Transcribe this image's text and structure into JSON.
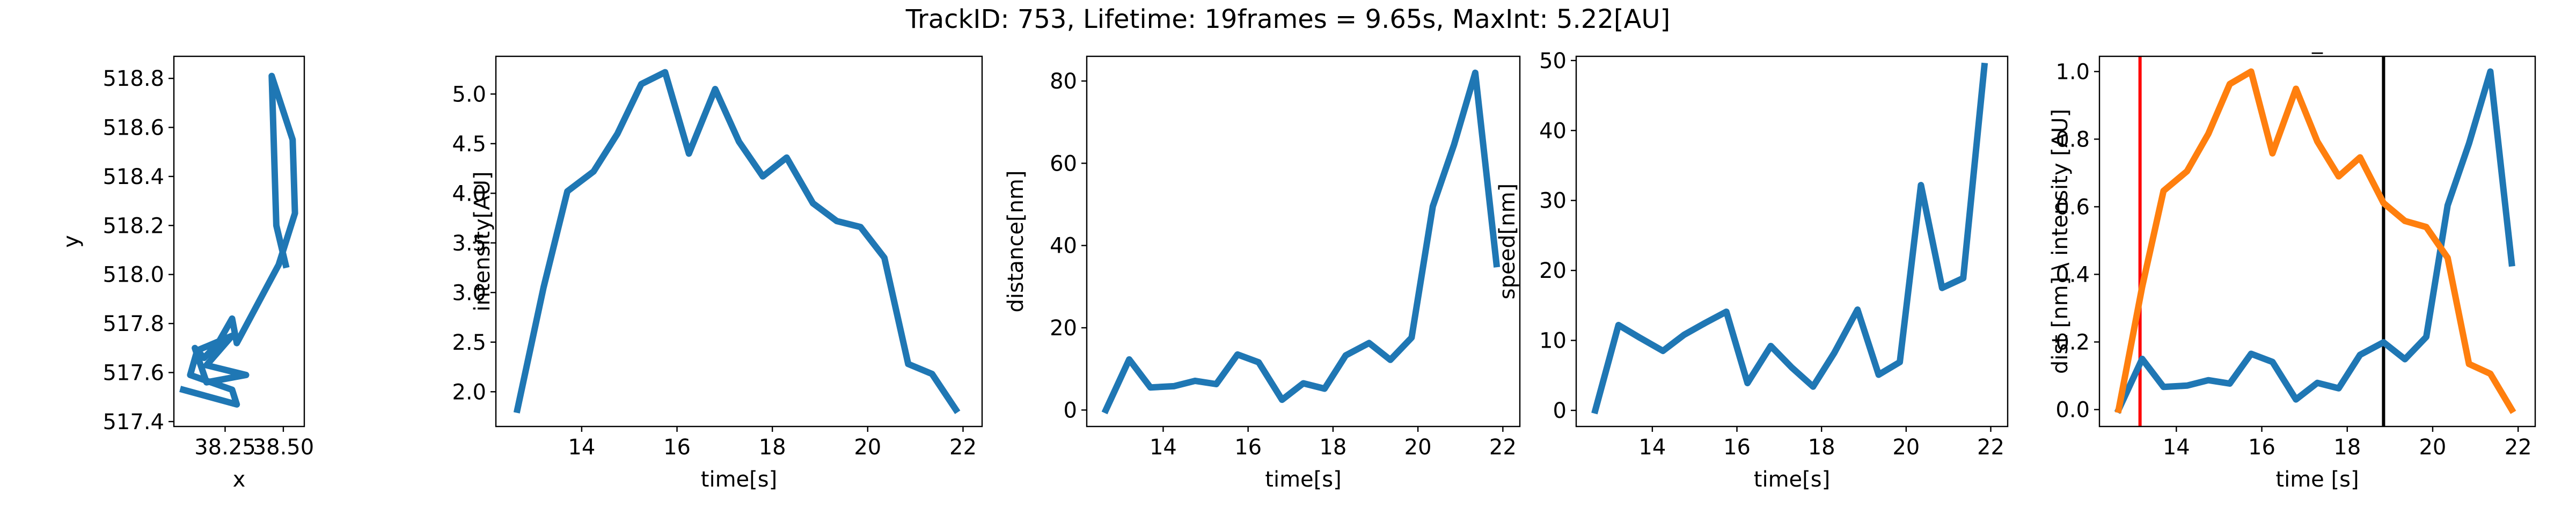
{
  "figure": {
    "suptitle": "TrackID: 753, Lifetime: 19frames = 9.65s, MaxInt: 5.22[AU]"
  },
  "colors": {
    "blue": "#1f77b4",
    "orange": "#ff7f0e",
    "red": "#ff0000",
    "black": "#000000"
  },
  "chart_data": [
    {
      "type": "line",
      "title": "",
      "xlabel": "x",
      "ylabel": "y",
      "xlim": [
        38.03,
        38.59
      ],
      "ylim": [
        517.38,
        518.89
      ],
      "xticks": [
        38.25,
        38.5
      ],
      "xtick_labels": [
        "38.25",
        "38.50"
      ],
      "yticks": [
        517.4,
        517.6,
        517.8,
        518.0,
        518.2,
        518.4,
        518.6,
        518.8
      ],
      "ytick_labels": [
        "517.4",
        "517.6",
        "517.8",
        "518.0",
        "518.2",
        "518.4",
        "518.6",
        "518.8"
      ],
      "grid": false,
      "series": [
        {
          "color": "#1f77b4",
          "x": [
            38.07,
            38.3,
            38.28,
            38.1,
            38.13,
            38.28,
            38.17,
            38.34,
            38.17,
            38.12,
            38.16,
            38.22,
            38.28,
            38.3,
            38.48,
            38.55,
            38.54,
            38.45,
            38.47,
            38.51
          ],
          "y": [
            517.53,
            517.47,
            517.53,
            517.59,
            517.69,
            517.75,
            517.63,
            517.59,
            517.56,
            517.7,
            517.66,
            517.72,
            517.82,
            517.72,
            518.04,
            518.25,
            518.55,
            518.81,
            518.2,
            518.04
          ]
        }
      ]
    },
    {
      "type": "line",
      "title": "",
      "xlabel": "time[s]",
      "ylabel": "intensity[AU]",
      "xlim": [
        12.2,
        22.4
      ],
      "ylim": [
        1.65,
        5.38
      ],
      "xticks": [
        14,
        16,
        18,
        20,
        22
      ],
      "xtick_labels": [
        "14",
        "16",
        "18",
        "20",
        "22"
      ],
      "yticks": [
        2.0,
        2.5,
        3.0,
        3.5,
        4.0,
        4.5,
        5.0
      ],
      "ytick_labels": [
        "2.0",
        "2.5",
        "3.0",
        "3.5",
        "4.0",
        "4.5",
        "5.0"
      ],
      "grid": false,
      "series": [
        {
          "color": "#1f77b4",
          "x": [
            12.65,
            13.2,
            13.7,
            14.25,
            14.75,
            15.25,
            15.75,
            16.25,
            16.8,
            17.3,
            17.8,
            18.3,
            18.85,
            19.35,
            19.85,
            20.35,
            20.85,
            21.35,
            21.85
          ],
          "y": [
            1.82,
            3.05,
            4.02,
            4.22,
            4.6,
            5.1,
            5.22,
            4.4,
            5.05,
            4.52,
            4.17,
            4.36,
            3.9,
            3.72,
            3.66,
            3.35,
            2.28,
            2.18,
            1.82
          ]
        }
      ]
    },
    {
      "type": "line",
      "title": "",
      "xlabel": "time[s]",
      "ylabel": "distance[nm]",
      "xlim": [
        12.2,
        22.4
      ],
      "ylim": [
        -4,
        86
      ],
      "xticks": [
        14,
        16,
        18,
        20,
        22
      ],
      "xtick_labels": [
        "14",
        "16",
        "18",
        "20",
        "22"
      ],
      "yticks": [
        0,
        20,
        40,
        60,
        80
      ],
      "ytick_labels": [
        "0",
        "20",
        "40",
        "60",
        "80"
      ],
      "grid": false,
      "series": [
        {
          "color": "#1f77b4",
          "x": [
            12.65,
            13.2,
            13.7,
            14.25,
            14.75,
            15.25,
            15.75,
            16.25,
            16.8,
            17.3,
            17.8,
            18.3,
            18.85,
            19.35,
            19.85,
            20.35,
            20.85,
            21.35,
            21.85
          ],
          "y": [
            0,
            12.3,
            5.5,
            5.8,
            7.1,
            6.3,
            13.5,
            11.6,
            2.5,
            6.5,
            5.2,
            13.3,
            16.3,
            12.2,
            17.6,
            49.5,
            64.5,
            82,
            35.5
          ]
        }
      ]
    },
    {
      "type": "line",
      "title": "",
      "xlabel": "time[s]",
      "ylabel": "speed[nm]",
      "xlim": [
        12.2,
        22.4
      ],
      "ylim": [
        -2.3,
        50.6
      ],
      "xticks": [
        14,
        16,
        18,
        20,
        22
      ],
      "xtick_labels": [
        "14",
        "16",
        "18",
        "20",
        "22"
      ],
      "yticks": [
        0,
        10,
        20,
        30,
        40,
        50
      ],
      "ytick_labels": [
        "0",
        "10",
        "20",
        "30",
        "40",
        "50"
      ],
      "grid": false,
      "series": [
        {
          "color": "#1f77b4",
          "x": [
            12.65,
            13.2,
            13.7,
            14.25,
            14.75,
            15.25,
            15.75,
            16.25,
            16.8,
            17.3,
            17.8,
            18.3,
            18.85,
            19.35,
            19.85,
            20.35,
            20.85,
            21.35,
            21.85
          ],
          "y": [
            0,
            12.2,
            10.4,
            8.5,
            10.8,
            12.5,
            14.1,
            3.9,
            9.2,
            6.1,
            3.4,
            8.2,
            14.4,
            5.1,
            6.9,
            32.2,
            17.5,
            18.9,
            49.2
          ]
        }
      ]
    },
    {
      "type": "line",
      "title": "_",
      "xlabel": "time [s]",
      "ylabel": "dist [nm] \\ intensity [AU]",
      "xlim": [
        12.2,
        22.4
      ],
      "ylim": [
        -0.05,
        1.045
      ],
      "xticks": [
        14,
        16,
        18,
        20,
        22
      ],
      "xtick_labels": [
        "14",
        "16",
        "18",
        "20",
        "22"
      ],
      "yticks": [
        0.0,
        0.2,
        0.4,
        0.6,
        0.8,
        1.0
      ],
      "ytick_labels": [
        "0.0",
        "0.2",
        "0.4",
        "0.6",
        "0.8",
        "1.0"
      ],
      "grid": false,
      "vlines": [
        {
          "x": 13.15,
          "color": "#ff0000"
        },
        {
          "x": 18.85,
          "color": "#000000"
        }
      ],
      "series": [
        {
          "color": "#1f77b4",
          "x": [
            12.65,
            13.2,
            13.7,
            14.25,
            14.75,
            15.25,
            15.75,
            16.25,
            16.8,
            17.3,
            17.8,
            18.3,
            18.85,
            19.35,
            19.85,
            20.35,
            20.85,
            21.35,
            21.85
          ],
          "y": [
            0.0,
            0.15,
            0.067,
            0.071,
            0.087,
            0.077,
            0.165,
            0.141,
            0.03,
            0.079,
            0.063,
            0.162,
            0.199,
            0.149,
            0.215,
            0.604,
            0.787,
            1.0,
            0.433
          ]
        },
        {
          "color": "#ff7f0e",
          "x": [
            12.65,
            13.2,
            13.7,
            14.25,
            14.75,
            15.25,
            15.75,
            16.25,
            16.8,
            17.3,
            17.8,
            18.3,
            18.85,
            19.35,
            19.85,
            20.35,
            20.85,
            21.35,
            21.85
          ],
          "y": [
            0.0,
            0.363,
            0.647,
            0.705,
            0.816,
            0.963,
            1.0,
            0.758,
            0.949,
            0.793,
            0.69,
            0.746,
            0.611,
            0.558,
            0.54,
            0.449,
            0.135,
            0.106,
            0.0
          ]
        }
      ]
    }
  ]
}
